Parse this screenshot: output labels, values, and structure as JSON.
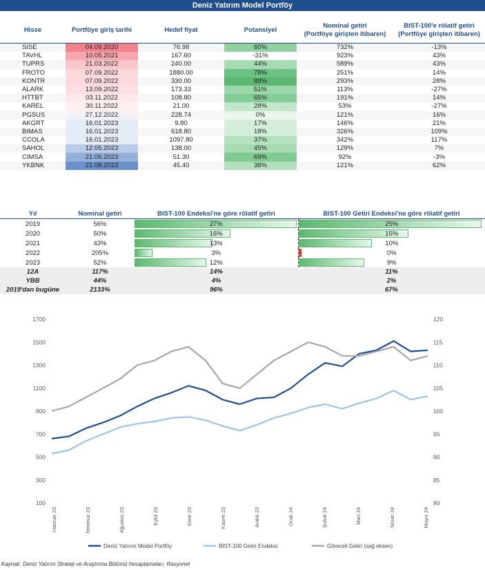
{
  "title": "Deniz Yatırım Model Portföy",
  "portfolio": {
    "headers": [
      "Hisse",
      "Portföye giriş tarihi",
      "Hedef fiyat",
      "Potansiyel",
      "Nominal getiri\n(Portföye girişten itibaren)",
      "BIST-100'e rölatif getiri\n(Portföye girişten itibaren)"
    ],
    "rows": [
      {
        "ticker": "SISE",
        "date": "04.09.2020",
        "target": "76.98",
        "pot": "60%",
        "nom": "732%",
        "rel": "-13%",
        "dc": "#f2838c",
        "pc": "#8fd29f"
      },
      {
        "ticker": "TAVHL",
        "date": "10.05.2021",
        "target": "167.60",
        "pot": "-31%",
        "nom": "923%",
        "rel": "43%",
        "dc": "#f6a8ae",
        "pc": "#ffffff"
      },
      {
        "ticker": "TUPRS",
        "date": "21.03.2022",
        "target": "240.00",
        "pot": "44%",
        "nom": "589%",
        "rel": "43%",
        "dc": "#f9c7cb",
        "pc": "#a7dcb3"
      },
      {
        "ticker": "FROTO",
        "date": "07.09.2022",
        "target": "1880.00",
        "pot": "78%",
        "nom": "251%",
        "rel": "14%",
        "dc": "#fbd9dc",
        "pc": "#6cc283"
      },
      {
        "ticker": "KONTR",
        "date": "07.09.2022",
        "target": "330.00",
        "pot": "88%",
        "nom": "293%",
        "rel": "28%",
        "dc": "#fbd9dc",
        "pc": "#5cb870"
      },
      {
        "ticker": "ALARK",
        "date": "13.09.2022",
        "target": "173.33",
        "pot": "51%",
        "nom": "113%",
        "rel": "-27%",
        "dc": "#fcdfe2",
        "pc": "#9cd7aa"
      },
      {
        "ticker": "HTTBT",
        "date": "03.11.2022",
        "target": "108.80",
        "pot": "65%",
        "nom": "191%",
        "rel": "14%",
        "dc": "#fde9eb",
        "pc": "#84cd97"
      },
      {
        "ticker": "KAREL",
        "date": "30.11.2022",
        "target": "21.00",
        "pot": "28%",
        "nom": "53%",
        "rel": "-27%",
        "dc": "#fdf0f1",
        "pc": "#c3e7cb"
      },
      {
        "ticker": "PGSUS",
        "date": "27.12.2022",
        "target": "228.74",
        "pot": "0%",
        "nom": "121%",
        "rel": "16%",
        "dc": "#f4f2f6",
        "pc": "#eaf6ed"
      },
      {
        "ticker": "AKGRT",
        "date": "16.01.2023",
        "target": "9.80",
        "pot": "17%",
        "nom": "146%",
        "rel": "21%",
        "dc": "#e6ecf6",
        "pc": "#d4eedb"
      },
      {
        "ticker": "BIMAS",
        "date": "16.01.2023",
        "target": "618.80",
        "pot": "18%",
        "nom": "326%",
        "rel": "109%",
        "dc": "#e6ecf6",
        "pc": "#d2edd9"
      },
      {
        "ticker": "CCOLA",
        "date": "16.01.2023",
        "target": "1097.80",
        "pot": "37%",
        "nom": "342%",
        "rel": "117%",
        "dc": "#e6ecf6",
        "pc": "#b4e1be"
      },
      {
        "ticker": "SAHOL",
        "date": "12.05.2023",
        "target": "138.00",
        "pot": "45%",
        "nom": "129%",
        "rel": "7%",
        "dc": "#b9cbe6",
        "pc": "#a6dbb2"
      },
      {
        "ticker": "CIMSA",
        "date": "21.06.2023",
        "target": "51.30",
        "pot": "69%",
        "nom": "92%",
        "rel": "-3%",
        "dc": "#94b0d8",
        "pc": "#7fcb92"
      },
      {
        "ticker": "YKBNK",
        "date": "21.08.2023",
        "target": "45.40",
        "pot": "38%",
        "nom": "121%",
        "rel": "62%",
        "dc": "#6b8fc8",
        "pc": "#b2e0bd"
      }
    ]
  },
  "yearly": {
    "headers": [
      "Yıl",
      "Nominal getiri",
      "BIST-100 Endeksi'ne göre rölatif getiri",
      "BIST-100 Getiri Endeksi'ne göre rölatif getiri"
    ],
    "rows": [
      {
        "year": "2019",
        "nom": "56%",
        "rel": "27%",
        "rel_v": 27,
        "relg": "25%",
        "relg_v": 25
      },
      {
        "year": "2020",
        "nom": "50%",
        "rel": "16%",
        "rel_v": 16,
        "relg": "15%",
        "relg_v": 15
      },
      {
        "year": "2021",
        "nom": "43%",
        "rel": "13%",
        "rel_v": 13,
        "relg": "10%",
        "relg_v": 10
      },
      {
        "year": "2022",
        "nom": "205%",
        "rel": "3%",
        "rel_v": 3,
        "relg": "0%",
        "relg_v": -0.5
      },
      {
        "year": "2023",
        "nom": "52%",
        "rel": "12%",
        "rel_v": 12,
        "relg": "9%",
        "relg_v": 9
      }
    ],
    "summary": [
      {
        "label": "12A",
        "nom": "117%",
        "rel": "14%",
        "relg": "11%"
      },
      {
        "label": "YBB",
        "nom": "44%",
        "rel": "4%",
        "relg": "2%"
      },
      {
        "label": "2019'dan bugüne",
        "nom": "2133%",
        "rel": "96%",
        "relg": "67%"
      }
    ]
  },
  "chart_data": {
    "type": "line",
    "x_labels": [
      "Haziran 23",
      "Temmuz 23",
      "Ağustos 23",
      "Eylül 23",
      "Ekim 23",
      "Kasım 23",
      "Aralık 23",
      "Ocak 24",
      "Şubat 24",
      "Mart 24",
      "Nisan 24",
      "Mayıs 24"
    ],
    "y_left": {
      "min": 100,
      "max": 1700,
      "ticks": [
        100,
        300,
        500,
        700,
        900,
        1100,
        1300,
        1500,
        1700
      ]
    },
    "y_right": {
      "min": 80,
      "max": 120,
      "ticks": [
        80,
        85,
        90,
        95,
        100,
        105,
        110,
        115,
        120
      ]
    },
    "series": [
      {
        "name": "Deniz Yatırım Model Portföy",
        "axis": "left",
        "color": "#1f4e8c",
        "values": [
          660,
          680,
          750,
          800,
          860,
          940,
          1010,
          1060,
          1120,
          1080,
          1000,
          960,
          1010,
          1020,
          1100,
          1220,
          1320,
          1290,
          1400,
          1430,
          1510,
          1420,
          1430
        ]
      },
      {
        "name": "BIST-100 Getiri Endeksi",
        "axis": "left",
        "color": "#9dc3e6",
        "values": [
          530,
          560,
          640,
          700,
          760,
          790,
          810,
          840,
          850,
          820,
          770,
          730,
          780,
          840,
          880,
          930,
          960,
          920,
          970,
          1010,
          1080,
          1000,
          1030
        ]
      },
      {
        "name": "Göreceli Getiri (sağ eksen)",
        "axis": "right",
        "color": "#a6a6a6",
        "values": [
          100,
          101,
          103,
          105,
          107,
          110,
          111,
          113,
          114,
          111,
          106,
          105,
          108,
          111,
          113,
          115,
          114,
          112,
          112,
          113,
          114,
          111,
          112
        ]
      }
    ]
  },
  "source": "Kaynak: Deniz Yatırım Strateji ve Araştırma Bölümü hesaplamaları, Rasyonet"
}
